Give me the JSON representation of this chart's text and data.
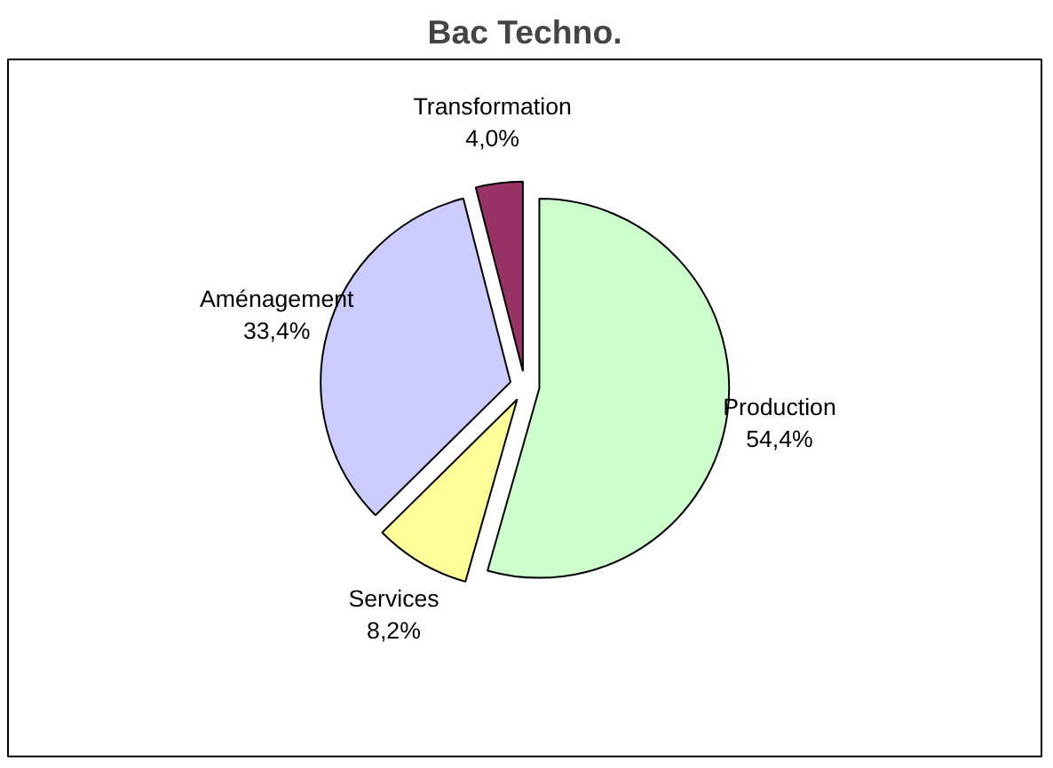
{
  "chart_data": {
    "type": "pie",
    "title": "Bac Techno.",
    "categories": [
      "Production",
      "Services",
      "Aménagement",
      "Transformation"
    ],
    "values": [
      54.4,
      8.2,
      33.4,
      4.0
    ],
    "colors": [
      "#ccffcc",
      "#ffff99",
      "#ccccff",
      "#993366"
    ],
    "value_labels": [
      "54,4%",
      "8,2%",
      "33,4%",
      "4,0%"
    ]
  }
}
